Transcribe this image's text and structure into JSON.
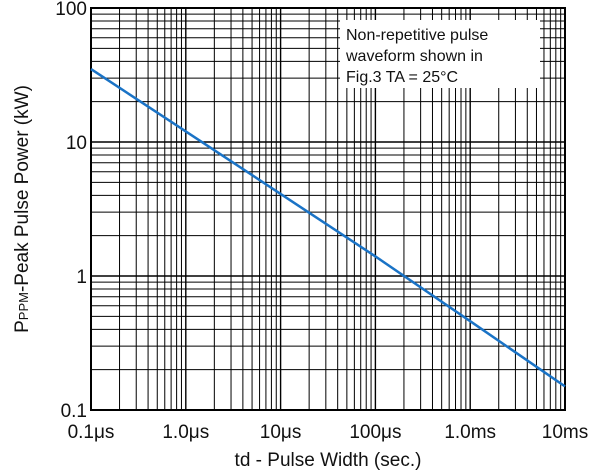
{
  "chart_data": {
    "type": "line",
    "x_scale": "log",
    "y_scale": "log",
    "xlim_seconds": [
      1e-07,
      0.01
    ],
    "ylim_kW": [
      0.1,
      100
    ],
    "x_ticks": [
      {
        "value": 1e-07,
        "label": "0.1μs"
      },
      {
        "value": 1e-06,
        "label": "1.0μs"
      },
      {
        "value": 1e-05,
        "label": "10μs"
      },
      {
        "value": 0.0001,
        "label": "100μs"
      },
      {
        "value": 0.001,
        "label": "1.0ms"
      },
      {
        "value": 0.01,
        "label": "10ms"
      }
    ],
    "y_ticks": [
      {
        "value": 0.1,
        "label": "0.1"
      },
      {
        "value": 1,
        "label": "1"
      },
      {
        "value": 10,
        "label": "10"
      },
      {
        "value": 100,
        "label": "100"
      }
    ],
    "xlabel": "td - Pulse Width (sec.)",
    "ylabel_main": "P",
    "ylabel_sub": "PPM",
    "ylabel_rest": "-Peak Pulse Power (kW)",
    "grid": true,
    "annotation_lines": [
      "Non-repetitive pulse",
      "waveform shown in",
      "Fig.3 TA = 25°C"
    ],
    "series": [
      {
        "color": "#1a73c6",
        "x": [
          1e-07,
          1e-06,
          1e-05,
          0.0001,
          0.001,
          0.01
        ],
        "y": [
          35,
          12,
          4.1,
          1.4,
          0.46,
          0.15
        ]
      }
    ]
  }
}
